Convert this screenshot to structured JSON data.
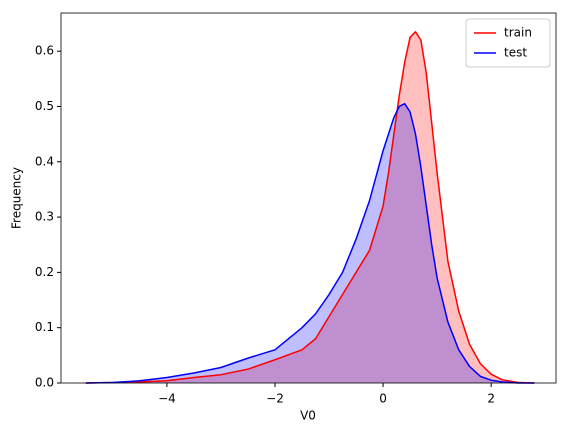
{
  "chart_data": {
    "type": "kde",
    "xlabel": "V0",
    "ylabel": "Frequency",
    "x": [
      -5.5,
      -5,
      -4.5,
      -4,
      -3.5,
      -3,
      -2.5,
      -2,
      -1.5,
      -1.25,
      -1,
      -0.75,
      -0.5,
      -0.25,
      0,
      0.1,
      0.2,
      0.3,
      0.4,
      0.5,
      0.6,
      0.7,
      0.8,
      0.9,
      1.0,
      1.2,
      1.4,
      1.6,
      1.8,
      2,
      2.2,
      2.5,
      2.8
    ],
    "series": [
      {
        "name": "train",
        "color": "#ff0000",
        "values": [
          0,
          0.001,
          0.002,
          0.004,
          0.01,
          0.015,
          0.025,
          0.042,
          0.06,
          0.08,
          0.12,
          0.16,
          0.2,
          0.24,
          0.32,
          0.38,
          0.45,
          0.52,
          0.58,
          0.625,
          0.635,
          0.62,
          0.56,
          0.47,
          0.38,
          0.22,
          0.13,
          0.07,
          0.035,
          0.016,
          0.006,
          0.001,
          0
        ]
      },
      {
        "name": "test",
        "color": "#0000ff",
        "values": [
          0,
          0.001,
          0.004,
          0.01,
          0.018,
          0.028,
          0.045,
          0.06,
          0.1,
          0.125,
          0.16,
          0.2,
          0.26,
          0.33,
          0.42,
          0.45,
          0.48,
          0.5,
          0.505,
          0.49,
          0.45,
          0.39,
          0.32,
          0.25,
          0.19,
          0.11,
          0.06,
          0.03,
          0.012,
          0.005,
          0.002,
          0,
          0
        ]
      }
    ],
    "xlim": [
      -5.96,
      3.2
    ],
    "xticks": [
      {
        "value": -4,
        "label": "−4"
      },
      {
        "value": -2,
        "label": "−2"
      },
      0,
      2
    ],
    "ylim": [
      0,
      0.669
    ],
    "yticks": [
      {
        "value": 0,
        "label": "0.0"
      },
      0.1,
      0.2,
      0.3,
      0.4,
      0.5,
      0.6
    ],
    "legend": "upper right",
    "fill_alpha": 0.25
  }
}
